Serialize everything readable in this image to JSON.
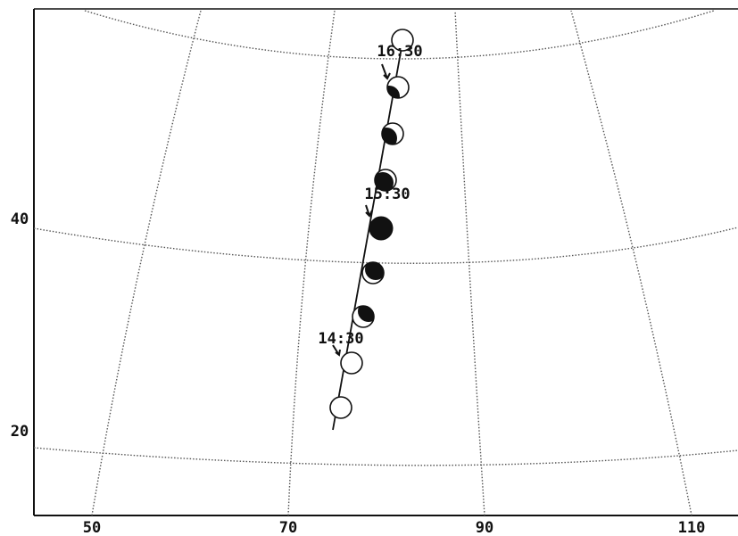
{
  "x_axis": {
    "labels": [
      "50",
      "70",
      "90",
      "110"
    ]
  },
  "y_axis": {
    "labels": [
      "40",
      "20"
    ]
  },
  "time_labels": [
    "16:30",
    "15:30",
    "14:30"
  ]
}
